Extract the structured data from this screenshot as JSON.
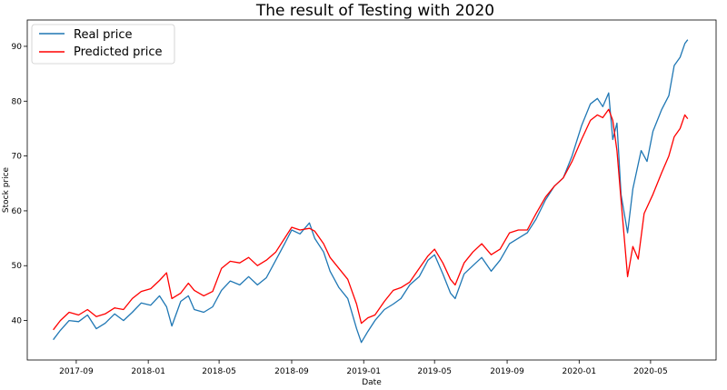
{
  "chart_data": {
    "type": "line",
    "title": "The result of Testing with 2020",
    "xlabel": "Date",
    "ylabel": "Stock price",
    "xlim": [
      "2017-06-10",
      "2020-08-20"
    ],
    "ylim": [
      32.8,
      94.8
    ],
    "x_ticks": [
      "2017-09",
      "2018-01",
      "2018-05",
      "2018-09",
      "2019-01",
      "2019-05",
      "2019-09",
      "2020-01",
      "2020-05"
    ],
    "y_ticks": [
      40,
      50,
      60,
      70,
      80,
      90
    ],
    "grid": false,
    "legend_position": "top-left",
    "series": [
      {
        "name": "Real price",
        "color": "#1f77b4",
        "points": [
          [
            "2017-07-24",
            36.5
          ],
          [
            "2017-08-05",
            38.2
          ],
          [
            "2017-08-20",
            40.0
          ],
          [
            "2017-09-05",
            39.8
          ],
          [
            "2017-09-20",
            41.0
          ],
          [
            "2017-10-05",
            38.5
          ],
          [
            "2017-10-20",
            39.5
          ],
          [
            "2017-11-05",
            41.2
          ],
          [
            "2017-11-20",
            40.0
          ],
          [
            "2017-12-05",
            41.5
          ],
          [
            "2017-12-20",
            43.2
          ],
          [
            "2018-01-05",
            42.8
          ],
          [
            "2018-01-20",
            44.5
          ],
          [
            "2018-02-01",
            42.5
          ],
          [
            "2018-02-10",
            39.0
          ],
          [
            "2018-02-25",
            43.5
          ],
          [
            "2018-03-10",
            44.5
          ],
          [
            "2018-03-20",
            42.0
          ],
          [
            "2018-04-05",
            41.5
          ],
          [
            "2018-04-20",
            42.5
          ],
          [
            "2018-05-05",
            45.5
          ],
          [
            "2018-05-20",
            47.2
          ],
          [
            "2018-06-05",
            46.5
          ],
          [
            "2018-06-20",
            48.0
          ],
          [
            "2018-07-05",
            46.5
          ],
          [
            "2018-07-20",
            47.8
          ],
          [
            "2018-08-05",
            51.0
          ],
          [
            "2018-08-20",
            54.0
          ],
          [
            "2018-09-01",
            56.5
          ],
          [
            "2018-09-15",
            55.8
          ],
          [
            "2018-10-01",
            57.8
          ],
          [
            "2018-10-10",
            55.0
          ],
          [
            "2018-10-25",
            52.5
          ],
          [
            "2018-11-05",
            49.0
          ],
          [
            "2018-11-20",
            46.0
          ],
          [
            "2018-12-05",
            44.0
          ],
          [
            "2018-12-20",
            38.5
          ],
          [
            "2018-12-28",
            36.0
          ],
          [
            "2019-01-08",
            38.0
          ],
          [
            "2019-01-20",
            40.0
          ],
          [
            "2019-02-05",
            42.0
          ],
          [
            "2019-02-20",
            43.0
          ],
          [
            "2019-03-05",
            44.0
          ],
          [
            "2019-03-20",
            46.5
          ],
          [
            "2019-04-05",
            48.0
          ],
          [
            "2019-04-20",
            51.0
          ],
          [
            "2019-05-01",
            52.0
          ],
          [
            "2019-05-15",
            48.5
          ],
          [
            "2019-05-28",
            45.0
          ],
          [
            "2019-06-05",
            44.0
          ],
          [
            "2019-06-20",
            48.5
          ],
          [
            "2019-07-05",
            50.0
          ],
          [
            "2019-07-20",
            51.5
          ],
          [
            "2019-08-05",
            49.0
          ],
          [
            "2019-08-20",
            51.0
          ],
          [
            "2019-09-05",
            54.0
          ],
          [
            "2019-09-20",
            55.0
          ],
          [
            "2019-10-05",
            56.0
          ],
          [
            "2019-10-20",
            58.5
          ],
          [
            "2019-11-05",
            62.0
          ],
          [
            "2019-11-20",
            64.5
          ],
          [
            "2019-12-05",
            66.0
          ],
          [
            "2019-12-20",
            70.0
          ],
          [
            "2020-01-05",
            75.5
          ],
          [
            "2020-01-20",
            79.5
          ],
          [
            "2020-02-01",
            80.5
          ],
          [
            "2020-02-10",
            79.0
          ],
          [
            "2020-02-20",
            81.5
          ],
          [
            "2020-02-27",
            73.0
          ],
          [
            "2020-03-05",
            76.0
          ],
          [
            "2020-03-12",
            63.0
          ],
          [
            "2020-03-23",
            56.0
          ],
          [
            "2020-04-01",
            64.0
          ],
          [
            "2020-04-15",
            71.0
          ],
          [
            "2020-04-25",
            69.0
          ],
          [
            "2020-05-05",
            74.5
          ],
          [
            "2020-05-20",
            78.5
          ],
          [
            "2020-06-01",
            81.0
          ],
          [
            "2020-06-10",
            86.5
          ],
          [
            "2020-06-20",
            88.0
          ],
          [
            "2020-06-28",
            90.5
          ],
          [
            "2020-07-03",
            91.2
          ]
        ]
      },
      {
        "name": "Predicted price",
        "color": "#ff0000",
        "points": [
          [
            "2017-07-24",
            38.3
          ],
          [
            "2017-08-05",
            40.0
          ],
          [
            "2017-08-20",
            41.5
          ],
          [
            "2017-09-05",
            41.0
          ],
          [
            "2017-09-20",
            42.0
          ],
          [
            "2017-10-05",
            40.7
          ],
          [
            "2017-10-20",
            41.2
          ],
          [
            "2017-11-05",
            42.3
          ],
          [
            "2017-11-20",
            42.0
          ],
          [
            "2017-12-05",
            44.0
          ],
          [
            "2017-12-20",
            45.3
          ],
          [
            "2018-01-05",
            45.8
          ],
          [
            "2018-01-20",
            47.3
          ],
          [
            "2018-02-01",
            48.7
          ],
          [
            "2018-02-10",
            44.0
          ],
          [
            "2018-02-25",
            45.0
          ],
          [
            "2018-03-10",
            46.8
          ],
          [
            "2018-03-20",
            45.5
          ],
          [
            "2018-04-05",
            44.5
          ],
          [
            "2018-04-20",
            45.3
          ],
          [
            "2018-05-05",
            49.5
          ],
          [
            "2018-05-20",
            50.8
          ],
          [
            "2018-06-05",
            50.5
          ],
          [
            "2018-06-20",
            51.5
          ],
          [
            "2018-07-05",
            50.0
          ],
          [
            "2018-07-20",
            51.0
          ],
          [
            "2018-08-05",
            52.5
          ],
          [
            "2018-08-20",
            55.0
          ],
          [
            "2018-09-01",
            57.0
          ],
          [
            "2018-09-15",
            56.5
          ],
          [
            "2018-10-01",
            56.8
          ],
          [
            "2018-10-10",
            56.3
          ],
          [
            "2018-10-25",
            54.0
          ],
          [
            "2018-11-05",
            51.5
          ],
          [
            "2018-11-20",
            49.5
          ],
          [
            "2018-12-05",
            47.5
          ],
          [
            "2018-12-20",
            43.0
          ],
          [
            "2018-12-28",
            39.5
          ],
          [
            "2019-01-08",
            40.5
          ],
          [
            "2019-01-20",
            41.0
          ],
          [
            "2019-02-05",
            43.5
          ],
          [
            "2019-02-20",
            45.5
          ],
          [
            "2019-03-05",
            46.0
          ],
          [
            "2019-03-20",
            47.0
          ],
          [
            "2019-04-05",
            49.5
          ],
          [
            "2019-04-20",
            51.8
          ],
          [
            "2019-05-01",
            53.0
          ],
          [
            "2019-05-15",
            50.5
          ],
          [
            "2019-05-28",
            47.5
          ],
          [
            "2019-06-05",
            46.5
          ],
          [
            "2019-06-20",
            50.5
          ],
          [
            "2019-07-05",
            52.5
          ],
          [
            "2019-07-20",
            54.0
          ],
          [
            "2019-08-05",
            52.0
          ],
          [
            "2019-08-20",
            53.0
          ],
          [
            "2019-09-05",
            56.0
          ],
          [
            "2019-09-20",
            56.5
          ],
          [
            "2019-10-05",
            56.5
          ],
          [
            "2019-10-20",
            59.5
          ],
          [
            "2019-11-05",
            62.5
          ],
          [
            "2019-11-20",
            64.5
          ],
          [
            "2019-12-05",
            66.0
          ],
          [
            "2019-12-20",
            69.0
          ],
          [
            "2020-01-05",
            73.0
          ],
          [
            "2020-01-20",
            76.5
          ],
          [
            "2020-02-01",
            77.5
          ],
          [
            "2020-02-10",
            77.0
          ],
          [
            "2020-02-20",
            78.5
          ],
          [
            "2020-02-27",
            76.5
          ],
          [
            "2020-03-05",
            71.0
          ],
          [
            "2020-03-12",
            62.0
          ],
          [
            "2020-03-23",
            48.0
          ],
          [
            "2020-04-01",
            53.5
          ],
          [
            "2020-04-10",
            51.2
          ],
          [
            "2020-04-20",
            59.5
          ],
          [
            "2020-05-05",
            63.0
          ],
          [
            "2020-05-20",
            67.0
          ],
          [
            "2020-06-01",
            70.0
          ],
          [
            "2020-06-10",
            73.5
          ],
          [
            "2020-06-20",
            75.0
          ],
          [
            "2020-06-28",
            77.5
          ],
          [
            "2020-07-03",
            76.8
          ]
        ]
      }
    ]
  }
}
